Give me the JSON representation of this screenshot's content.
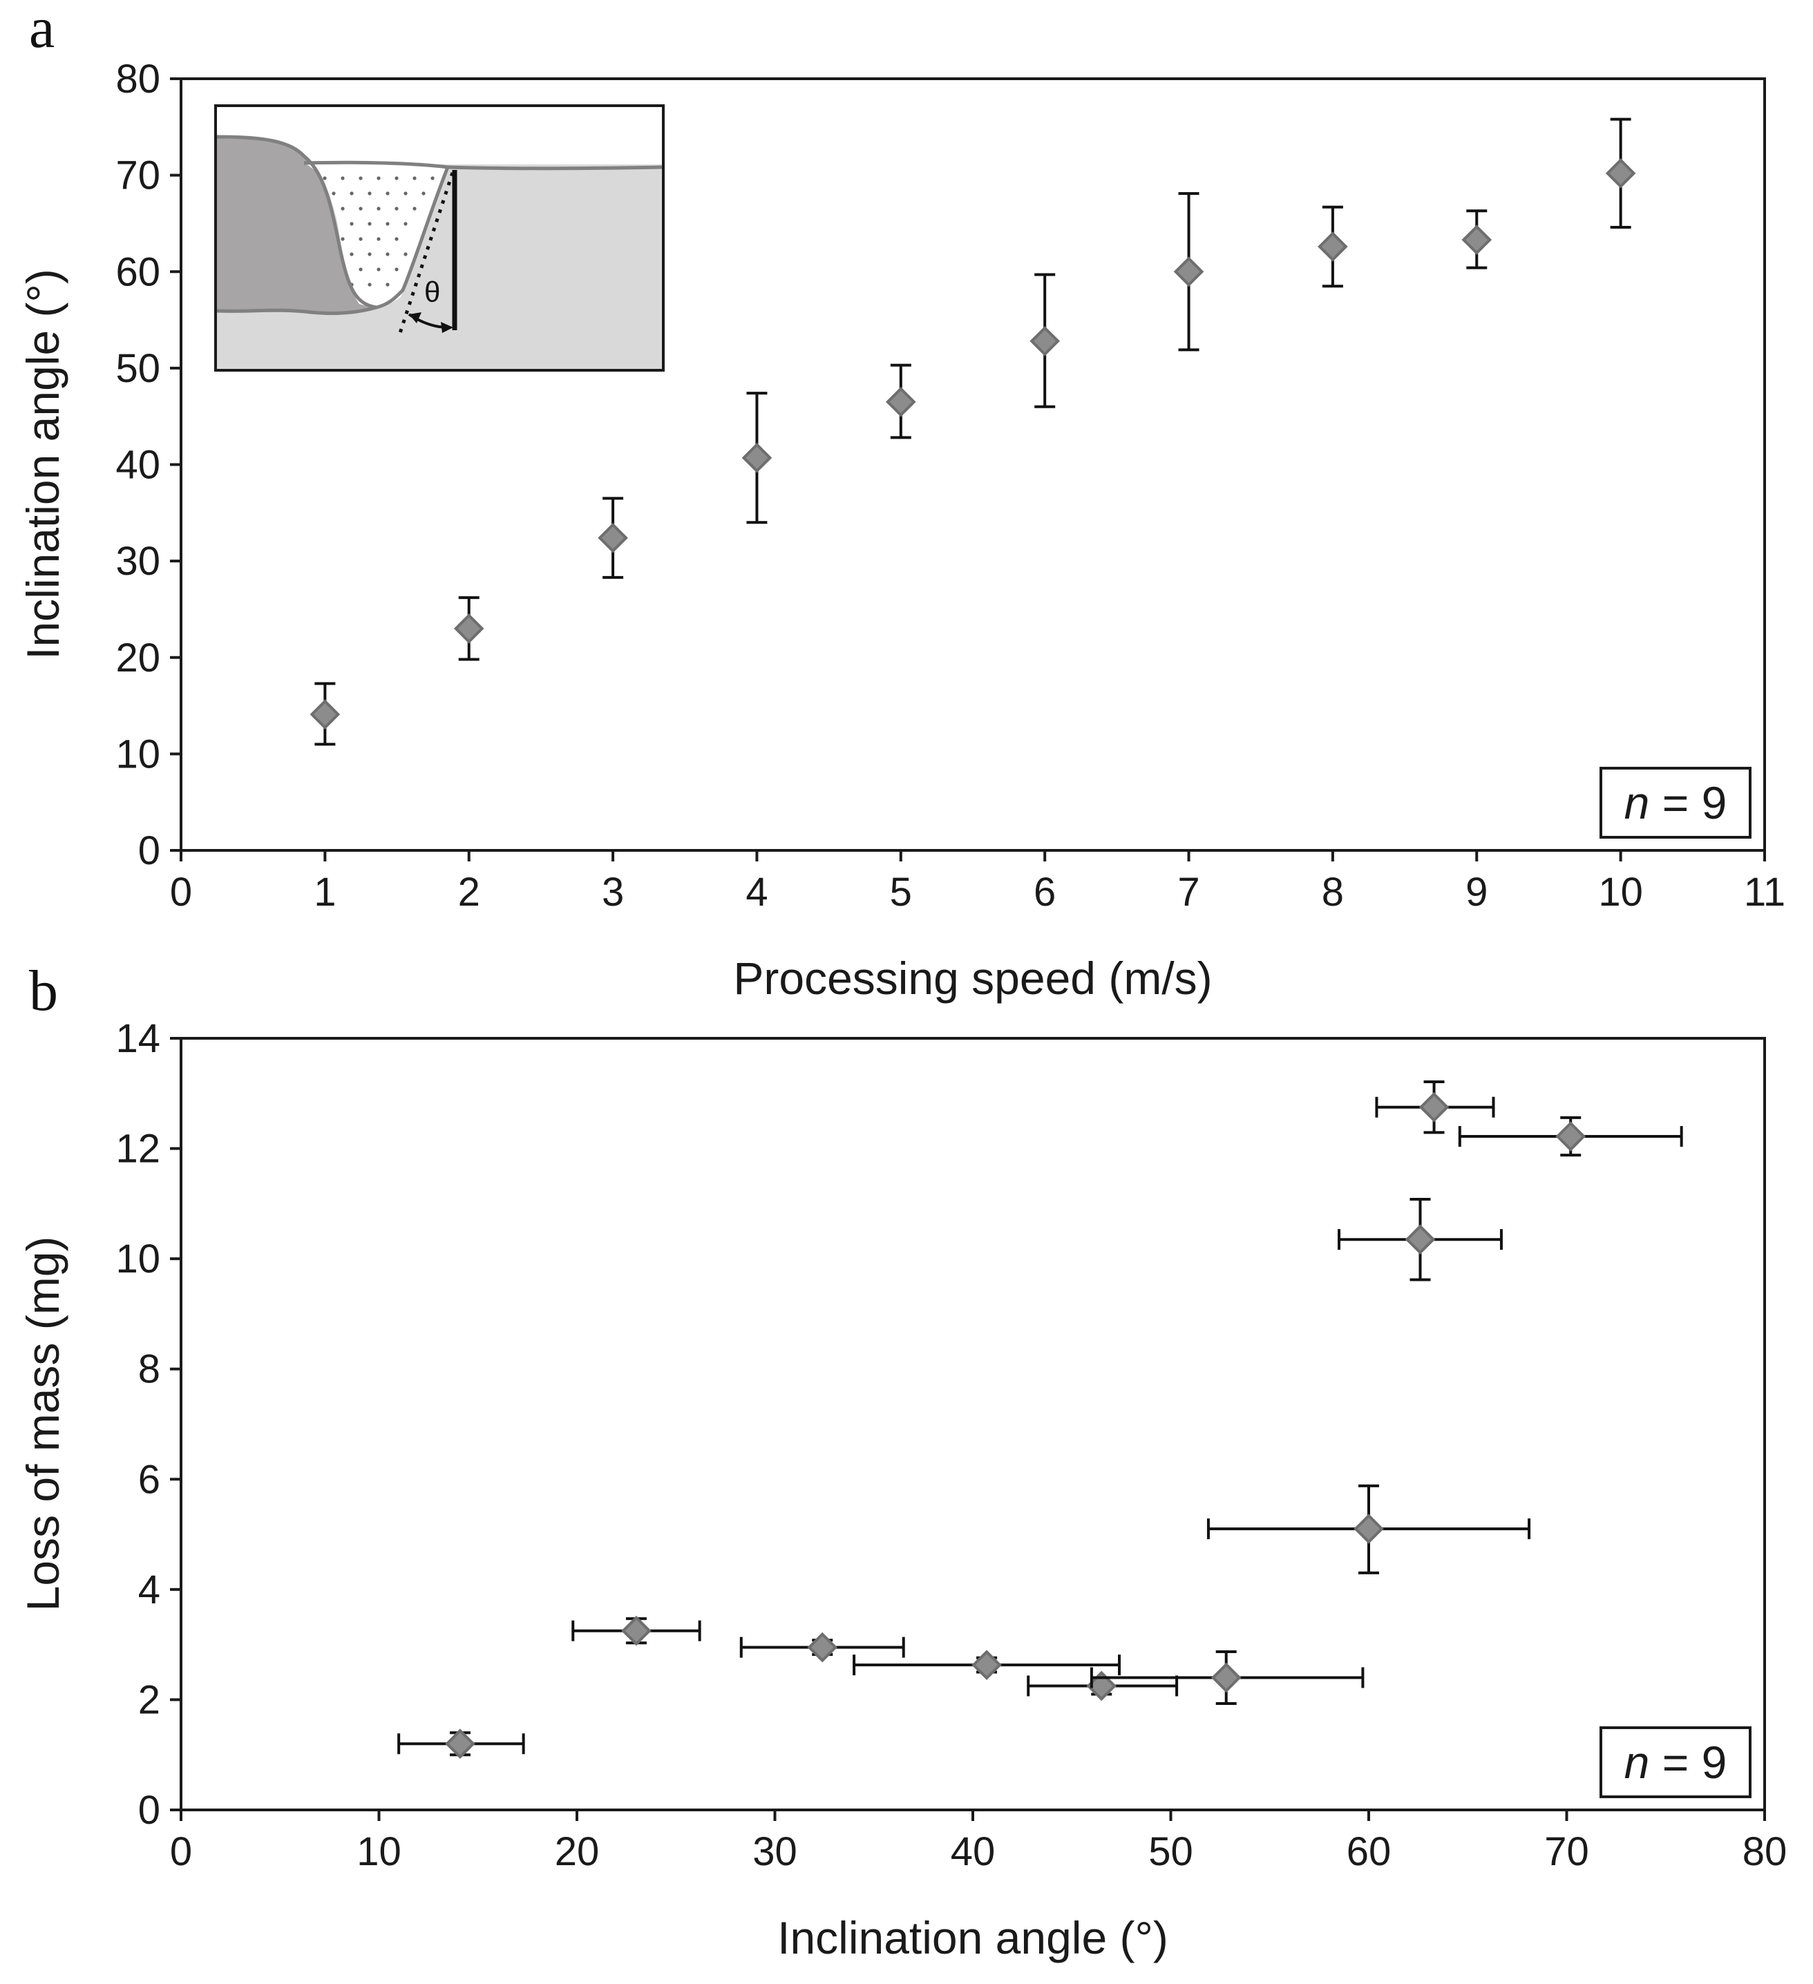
{
  "chart_data": [
    {
      "type": "scatter",
      "panel_label": "a",
      "xlabel": "Processing speed (m/s)",
      "ylabel": "Inclination angle (°)",
      "xlim": [
        0,
        11
      ],
      "ylim": [
        0,
        80
      ],
      "xticks": [
        0,
        1,
        2,
        3,
        4,
        5,
        6,
        7,
        8,
        9,
        10,
        11
      ],
      "yticks": [
        0,
        10,
        20,
        30,
        40,
        50,
        60,
        70,
        80
      ],
      "annotation": {
        "n_italic": "n",
        "n_rest": " = 9"
      },
      "inset": {
        "symbol": "θ"
      },
      "series": [
        {
          "name": "Inclination angle",
          "x": [
            1,
            2,
            3,
            4,
            5,
            6,
            7,
            8,
            9,
            10
          ],
          "y": [
            14.1,
            23.0,
            32.4,
            40.7,
            46.5,
            52.8,
            60.0,
            62.6,
            63.3,
            70.2
          ],
          "y_err_low": [
            11.0,
            19.8,
            28.3,
            34.0,
            42.8,
            46.0,
            51.9,
            58.5,
            60.4,
            64.6
          ],
          "y_err_high": [
            17.3,
            26.2,
            36.5,
            47.4,
            50.3,
            59.7,
            68.1,
            66.7,
            66.3,
            75.8
          ]
        }
      ]
    },
    {
      "type": "scatter",
      "panel_label": "b",
      "xlabel": "Inclination angle (°)",
      "ylabel": "Loss of mass (mg)",
      "xlim": [
        0,
        80
      ],
      "ylim": [
        0,
        14
      ],
      "xticks": [
        0,
        10,
        20,
        30,
        40,
        50,
        60,
        70,
        80
      ],
      "yticks": [
        0,
        2,
        4,
        6,
        8,
        10,
        12,
        14
      ],
      "annotation": {
        "n_italic": "n",
        "n_rest": " = 9"
      },
      "series": [
        {
          "name": "Loss of mass",
          "x": [
            14.1,
            23.0,
            32.4,
            40.7,
            46.5,
            52.8,
            60.0,
            62.6,
            63.3,
            70.2
          ],
          "y": [
            1.2,
            3.25,
            2.95,
            2.63,
            2.25,
            2.4,
            5.1,
            10.35,
            12.75,
            12.22
          ],
          "x_err_low": [
            11.0,
            19.8,
            28.3,
            34.0,
            42.8,
            46.0,
            51.9,
            58.5,
            60.4,
            64.6
          ],
          "x_err_high": [
            17.3,
            26.2,
            36.5,
            47.4,
            50.3,
            59.7,
            68.1,
            66.7,
            66.3,
            75.8
          ],
          "y_err_low": [
            1.0,
            3.03,
            2.82,
            2.5,
            2.1,
            1.93,
            4.3,
            9.62,
            12.29,
            11.88
          ],
          "y_err_high": [
            1.4,
            3.47,
            3.08,
            2.76,
            2.4,
            2.87,
            5.88,
            11.08,
            13.21,
            12.56
          ]
        }
      ]
    }
  ],
  "colors": {
    "marker_fill": "#8c8c8c",
    "marker_edge": "#6e6e6e",
    "axis": "#1a1a1a",
    "inset_dark": "#a7a5a5",
    "inset_light": "#d9d9d9"
  }
}
